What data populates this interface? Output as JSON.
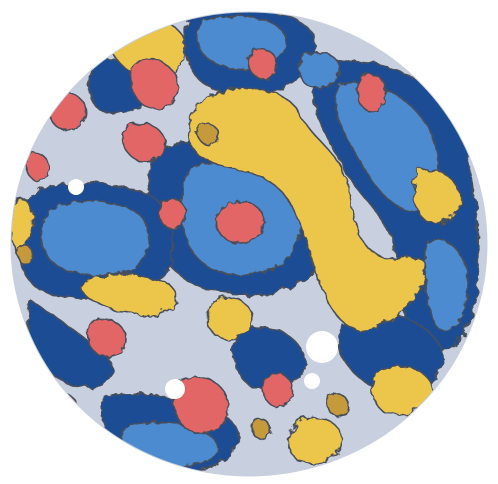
{
  "canvas": {
    "background": "#ffffff"
  },
  "palette": {
    "light_gray": "#c8d0df",
    "dark_blue": "#1f4e94",
    "mid_blue": "#4d8bd0",
    "yellow": "#ecc64b",
    "salmon": "#e36666",
    "ochre": "#c49a3a",
    "outline": "#4a4f5a",
    "hole": "#ffffff"
  },
  "legend_items": []
}
